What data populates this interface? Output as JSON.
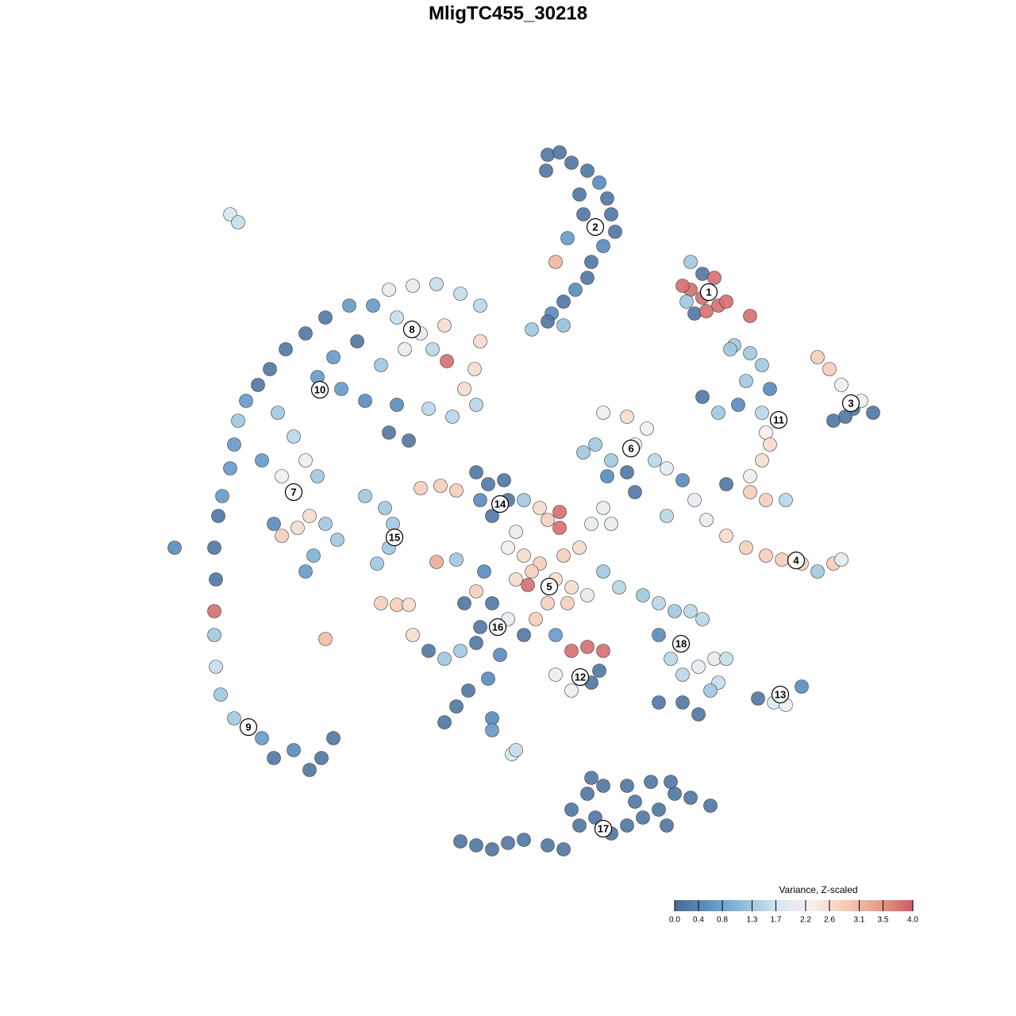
{
  "chart_data": {
    "type": "scatter",
    "title": "MligTC455_30218",
    "xlim": [
      160,
      1120
    ],
    "ylim": [
      1080,
      120
    ],
    "x": [
      690,
      705,
      720,
      740,
      755,
      765,
      770,
      775,
      760,
      745,
      740,
      725,
      710,
      695,
      710,
      670,
      690,
      715,
      700,
      735,
      688,
      730,
      870,
      885,
      900,
      870,
      885,
      905,
      915,
      860,
      875,
      890,
      945,
      865,
      925,
      945,
      960,
      940,
      970,
      885,
      905,
      930,
      960,
      965,
      970,
      960,
      945,
      915,
      945,
      965,
      990,
      920,
      1030,
      1045,
      1060,
      1050,
      1075,
      1100,
      1085,
      1065,
      760,
      790,
      815,
      800,
      750,
      770,
      790,
      825,
      840,
      735,
      765,
      800,
      760,
      745,
      770,
      860,
      875,
      890,
      915,
      940,
      965,
      985,
      1010,
      1030,
      1050,
      1060,
      840,
      490,
      520,
      550,
      580,
      605,
      470,
      440,
      410,
      385,
      360,
      340,
      325,
      310,
      300,
      295,
      290,
      280,
      275,
      270,
      272,
      270,
      270,
      272,
      278,
      295,
      330,
      345,
      370,
      390,
      405,
      420,
      500,
      530,
      560,
      545,
      510,
      480,
      450,
      420,
      400,
      430,
      460,
      500,
      540,
      570,
      600,
      585,
      598,
      605,
      563,
      350,
      370,
      330,
      355,
      385,
      400,
      390,
      375,
      355,
      410,
      425,
      395,
      385,
      345,
      290,
      300,
      220,
      490,
      515,
      600,
      615,
      635,
      605,
      620,
      640,
      530,
      555,
      575,
      660,
      680,
      705,
      705,
      690,
      650,
      640,
      660,
      680,
      710,
      730,
      650,
      670,
      700,
      720,
      665,
      690,
      715,
      740,
      760,
      780,
      610,
      600,
      585,
      620,
      605,
      640,
      660,
      675,
      700,
      720,
      740,
      760,
      700,
      720,
      745,
      755,
      520,
      540,
      560,
      580,
      600,
      630,
      615,
      590,
      575,
      560,
      620,
      620,
      645,
      650,
      480,
      500,
      515,
      410,
      550,
      575,
      460,
      485,
      495,
      490,
      475,
      810,
      830,
      850,
      870,
      885,
      830,
      845,
      860,
      880,
      900,
      915,
      905,
      830,
      860,
      880,
      895,
      955,
      975,
      990,
      1010,
      580,
      600,
      620,
      640,
      660,
      690,
      710,
      730,
      750,
      770,
      790,
      810,
      830,
      850,
      870,
      895,
      760,
      790,
      820,
      845,
      740,
      720,
      800,
      745,
      840
    ],
    "y": [
      195,
      192,
      205,
      215,
      230,
      250,
      270,
      292,
      310,
      330,
      350,
      365,
      380,
      395,
      410,
      415,
      405,
      300,
      330,
      270,
      215,
      245,
      330,
      345,
      350,
      365,
      375,
      385,
      380,
      360,
      395,
      392,
      398,
      380,
      435,
      445,
      460,
      480,
      490,
      500,
      520,
      510,
      520,
      545,
      560,
      580,
      600,
      610,
      620,
      630,
      630,
      440,
      450,
      465,
      485,
      530,
      515,
      520,
      505,
      525,
      520,
      525,
      540,
      560,
      560,
      580,
      595,
      580,
      590,
      570,
      600,
      620,
      640,
      660,
      660,
      605,
      630,
      655,
      675,
      690,
      700,
      705,
      710,
      720,
      710,
      705,
      650,
      365,
      360,
      358,
      370,
      385,
      385,
      385,
      400,
      420,
      440,
      465,
      485,
      505,
      530,
      560,
      590,
      625,
      650,
      690,
      730,
      770,
      800,
      840,
      875,
      905,
      930,
      955,
      945,
      970,
      955,
      930,
      400,
      420,
      410,
      440,
      440,
      460,
      430,
      450,
      475,
      490,
      505,
      510,
      515,
      525,
      510,
      490,
      465,
      430,
      455,
      520,
      550,
      580,
      600,
      580,
      600,
      650,
      665,
      675,
      660,
      680,
      700,
      720,
      660,
      270,
      280,
      690,
      545,
      555,
      595,
      610,
      605,
      630,
      650,
      630,
      615,
      612,
      618,
      630,
      640,
      645,
      665,
      655,
      670,
      690,
      700,
      710,
      700,
      690,
      730,
      720,
      730,
      740,
      737,
      760,
      760,
      750,
      720,
      740,
      720,
      745,
      760,
      760,
      790,
      780,
      800,
      780,
      800,
      820,
      815,
      820,
      850,
      870,
      860,
      845,
      800,
      820,
      830,
      820,
      810,
      825,
      855,
      870,
      890,
      910,
      905,
      920,
      950,
      945,
      760,
      762,
      762,
      805,
      708,
      705,
      625,
      640,
      660,
      690,
      710,
      750,
      760,
      770,
      770,
      780,
      800,
      830,
      850,
      840,
      830,
      830,
      860,
      885,
      885,
      900,
      870,
      880,
      885,
      888,
      865,
      1060,
      1065,
      1070,
      1062,
      1058,
      1065,
      1070,
      1040,
      1030,
      1050,
      1040,
      1030,
      1020,
      1000,
      1005,
      1015,
      990,
      990,
      985,
      985,
      1000,
      1020,
      1010,
      980,
      1040
    ],
    "values": [
      0.2,
      0.2,
      0.2,
      0.2,
      0.5,
      0.2,
      0.2,
      0.2,
      0.5,
      0.2,
      0.2,
      0.5,
      0.2,
      0.5,
      1.2,
      1.3,
      0.2,
      0.7,
      3.1,
      0.2,
      0.2,
      0.2,
      1.3,
      0.2,
      3.8,
      3.8,
      3.8,
      3.8,
      3.8,
      3.8,
      0.2,
      3.8,
      3.8,
      1.3,
      1.3,
      1.3,
      1.3,
      1.3,
      0.5,
      0.2,
      1.3,
      0.5,
      1.5,
      2.3,
      2.6,
      2.6,
      2.2,
      0.2,
      2.8,
      2.8,
      1.5,
      1.3,
      2.8,
      2.8,
      2.2,
      0.2,
      0.2,
      0.2,
      2.2,
      0.2,
      2.2,
      2.6,
      2.2,
      2.2,
      1.3,
      1.3,
      0.2,
      1.5,
      2,
      1.3,
      0.5,
      0.2,
      2,
      2,
      2,
      0.5,
      2,
      2,
      2.6,
      2.8,
      2.8,
      2.8,
      2.8,
      1.3,
      2.8,
      2,
      1.5,
      2,
      2,
      1.6,
      1.6,
      1.5,
      0.7,
      0.7,
      0.2,
      0.2,
      0.2,
      0.2,
      0.2,
      0.7,
      1.3,
      0.7,
      0.7,
      0.7,
      0.2,
      0.2,
      0.2,
      3.8,
      1.3,
      1.6,
      1.3,
      1.3,
      0.7,
      0.2,
      0.5,
      0.2,
      0.2,
      0.2,
      1.6,
      2,
      2.6,
      1.5,
      2,
      1.3,
      0.2,
      0.7,
      0.7,
      0.7,
      0.5,
      0.5,
      1.5,
      1.5,
      1.5,
      2.6,
      2.6,
      2.6,
      3.8,
      1.3,
      1.5,
      0.7,
      2.2,
      2.2,
      1.3,
      2.6,
      2.6,
      2.8,
      1.3,
      1.3,
      1,
      0.7,
      0.5,
      1.8,
      1.6,
      0.5,
      0.2,
      0.2,
      0.2,
      0.2,
      0.2,
      0.5,
      0.2,
      0.2,
      2.8,
      2.8,
      2.8,
      1.3,
      2.6,
      3.8,
      3.8,
      2.8,
      2,
      2.2,
      2.6,
      2.8,
      2.8,
      2.6,
      2.6,
      2.8,
      2.6,
      2.6,
      3.8,
      2.8,
      2.8,
      2,
      1.3,
      1.5,
      0.5,
      2.8,
      0.2,
      0.2,
      0.2,
      2,
      0.2,
      2.8,
      0.7,
      3.8,
      3.8,
      3.8,
      2.2,
      2.2,
      0.2,
      0.2,
      2.6,
      0.2,
      1.3,
      1.3,
      0.2,
      0.5,
      0.5,
      0.2,
      0.2,
      0.2,
      0.5,
      0.7,
      1.8,
      1.6,
      2.8,
      2.8,
      2.6,
      3,
      3.2,
      1.3,
      1.3,
      1.3,
      1.3,
      1.3,
      1.3,
      1.3,
      1.5,
      1.3,
      1.5,
      1.5,
      0.5,
      1.5,
      1.5,
      2,
      2,
      1.6,
      1.6,
      0.2,
      0.2,
      0.2,
      1.3,
      0.2,
      1.8,
      2.2,
      0.5,
      0.2,
      0.2,
      0.2,
      0.2,
      0.2,
      0.2,
      0.2,
      0.2,
      0.2,
      0.2,
      0.2,
      0.2,
      0.2,
      0.2,
      0.2,
      0.2,
      0.2,
      0.2,
      0.2,
      0.2,
      0.2,
      0.2,
      0.2,
      0.2,
      0.2
    ],
    "clusters": {
      "labels": [
        1,
        2,
        3,
        4,
        5,
        6,
        7,
        8,
        9,
        10,
        11,
        12,
        13,
        14,
        15,
        16,
        17,
        18
      ],
      "x": [
        893,
        750,
        1072,
        1003,
        692,
        795,
        370,
        519,
        313,
        403,
        981,
        731,
        983,
        630,
        497,
        627,
        760,
        858
      ],
      "y": [
        368,
        286,
        508,
        706,
        739,
        565,
        620,
        415,
        916,
        491,
        529,
        853,
        875,
        635,
        677,
        790,
        1044,
        811
      ]
    },
    "colorbar": {
      "title": "Variance, Z-scaled",
      "lim": [
        0,
        4
      ],
      "colors": [
        "#4c6a92",
        "#5d92c4",
        "#8fbedb",
        "#d4e6f0",
        "#f6f0ee",
        "#f5cbb6",
        "#e69c86",
        "#cc5a69"
      ],
      "ticks": [
        {
          "value": 0,
          "label": "0.0"
        },
        0.4,
        0.8,
        1.3,
        1.7,
        2.2,
        2.6,
        3.1,
        3.5,
        {
          "value": 4,
          "label": "4.0"
        }
      ]
    }
  }
}
